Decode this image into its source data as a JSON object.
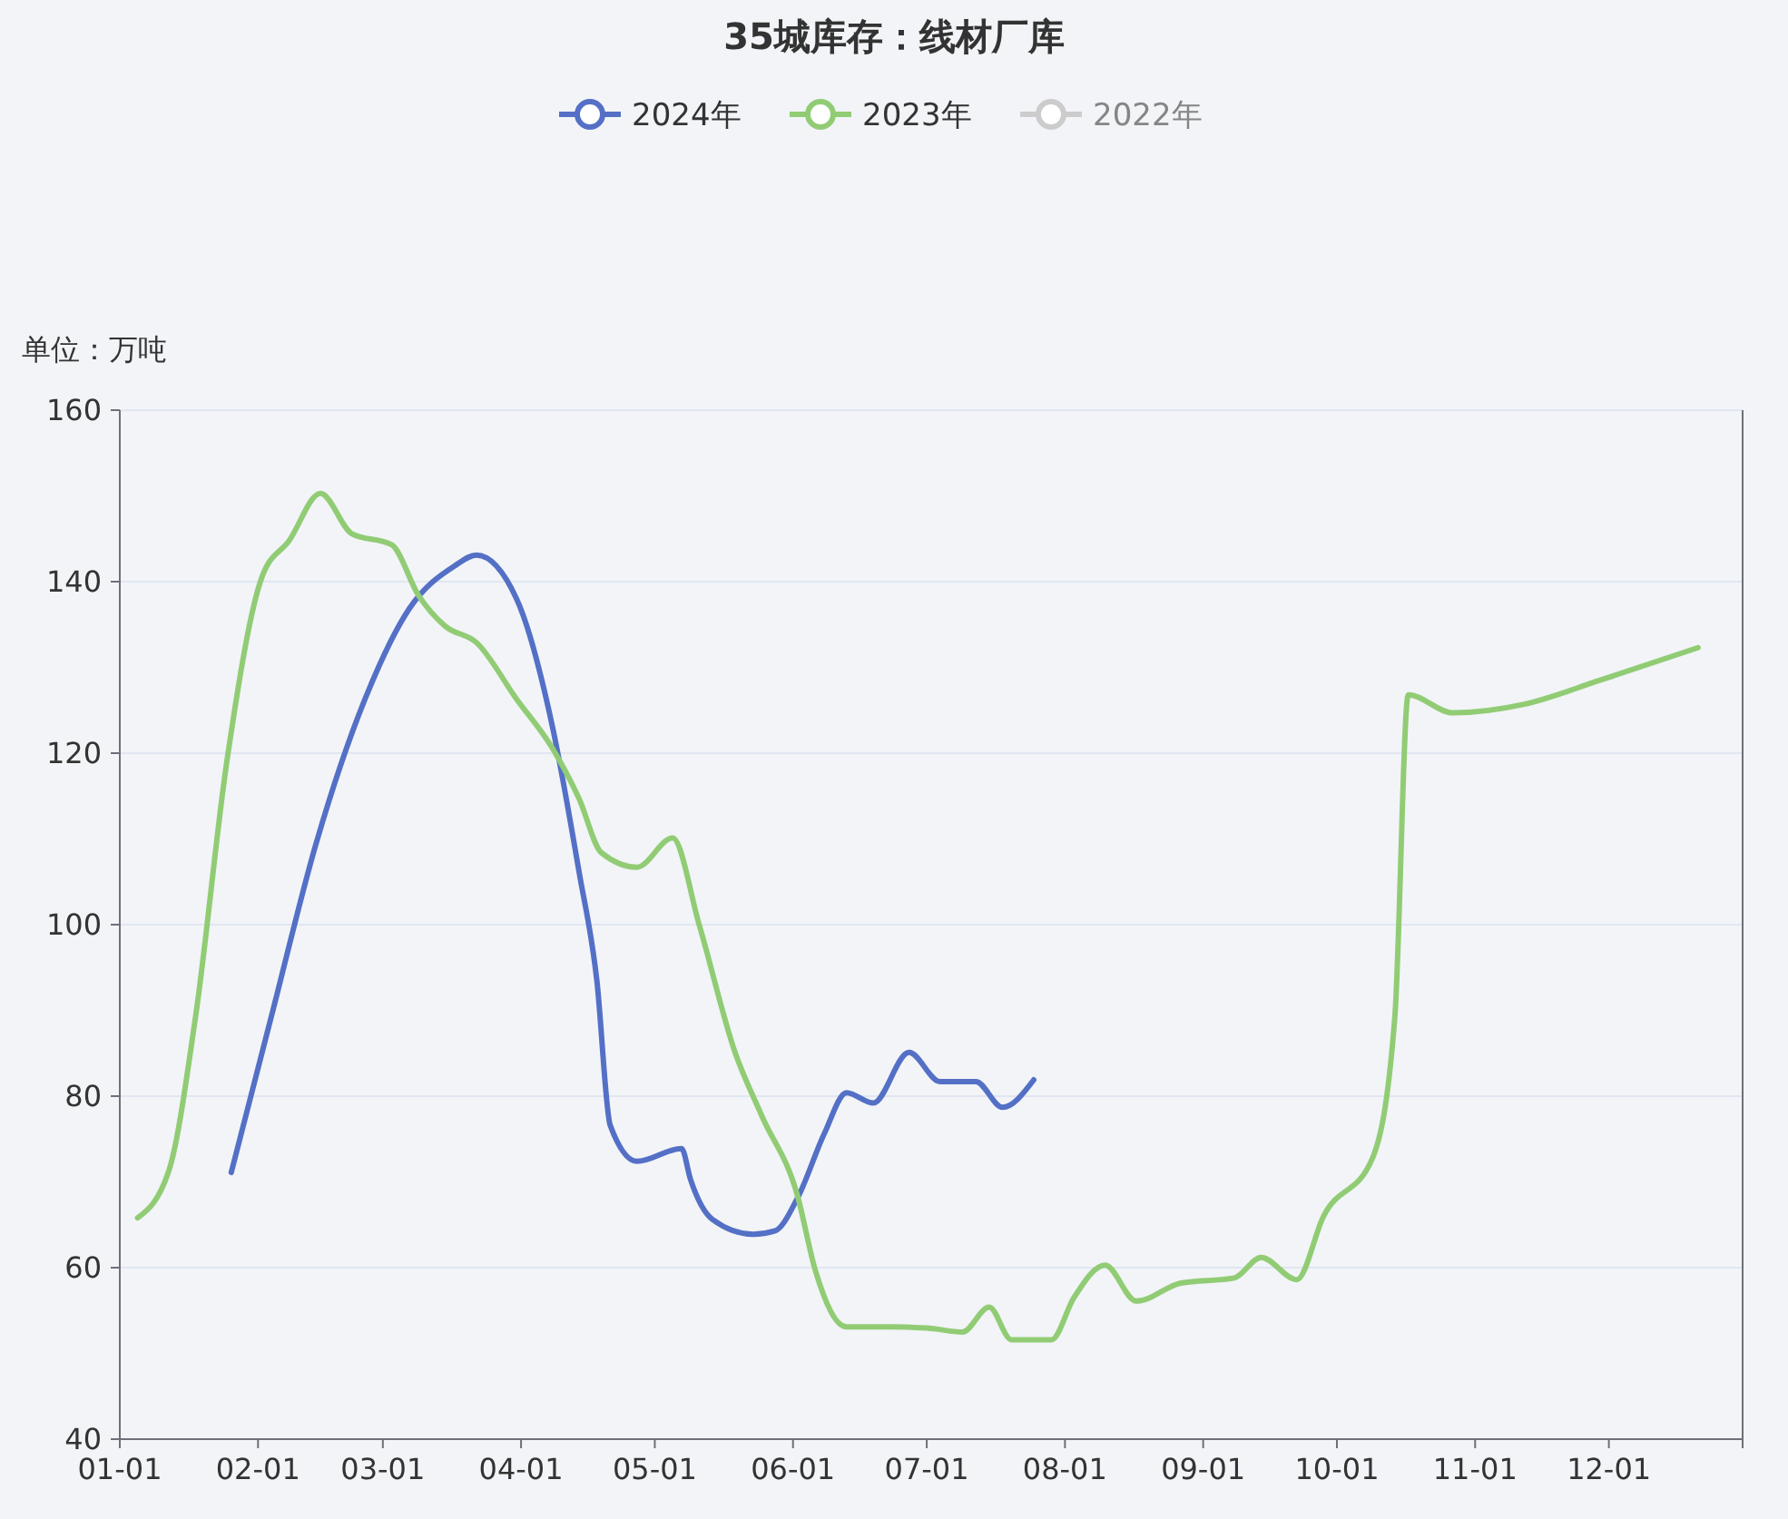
{
  "chart_data": {
    "type": "line",
    "title": "35城库存：线材厂库",
    "ylabel": "单位：万吨",
    "legend": "top",
    "grid": "y",
    "xlim": [
      "--01-01",
      "--12-31"
    ],
    "xticks": [
      {
        "value": "--01-01",
        "label": "01-01"
      },
      {
        "value": "--02-01",
        "label": "02-01"
      },
      {
        "value": "--03-01",
        "label": "03-01"
      },
      {
        "value": "--04-01",
        "label": "04-01"
      },
      {
        "value": "--05-01",
        "label": "05-01"
      },
      {
        "value": "--06-01",
        "label": "06-01"
      },
      {
        "value": "--07-01",
        "label": "07-01"
      },
      {
        "value": "--08-01",
        "label": "08-01"
      },
      {
        "value": "--09-01",
        "label": "09-01"
      },
      {
        "value": "--10-01",
        "label": "10-01"
      },
      {
        "value": "--11-01",
        "label": "11-01"
      },
      {
        "value": "--12-01",
        "label": "12-01"
      }
    ],
    "ylim": [
      40,
      160
    ],
    "yticks": [
      40,
      60,
      80,
      100,
      120,
      140,
      160
    ],
    "series": [
      {
        "name": "2024年",
        "color": "#5470c6",
        "x": [
          "--01-26",
          "--02-04",
          "--02-14",
          "--02-25",
          "--03-07",
          "--03-17",
          "--03-22",
          "--03-31",
          "--04-08",
          "--04-14",
          "--04-18",
          "--04-21",
          "--04-27",
          "--05-07",
          "--05-09",
          "--05-14",
          "--05-23",
          "--05-28",
          "--06-02",
          "--06-08",
          "--06-13",
          "--06-19",
          "--06-27",
          "--07-04",
          "--07-12",
          "--07-18",
          "--07-25"
        ],
        "values": [
          71.1,
          89.3,
          109.4,
          126.3,
          136.9,
          141.8,
          143.1,
          138,
          123.2,
          106.2,
          93.5,
          76.6,
          72.4,
          73.9,
          70.3,
          65.6,
          63.9,
          64.3,
          68.1,
          75.6,
          80.4,
          79.2,
          85.1,
          81.7,
          81.7,
          78.7,
          81.9
        ]
      },
      {
        "name": "2023年",
        "color": "#91cc75",
        "x": [
          "--01-05",
          "--01-12",
          "--01-18",
          "--01-25",
          "--02-02",
          "--02-08",
          "--02-15",
          "--02-22",
          "--03-03",
          "--03-09",
          "--03-15",
          "--03-22",
          "--03-31",
          "--04-08",
          "--04-14",
          "--04-19",
          "--04-27",
          "--05-05",
          "--05-11",
          "--05-19",
          "--05-25",
          "--06-02",
          "--06-06",
          "--06-13",
          "--06-23",
          "--07-02",
          "--07-09",
          "--07-15",
          "--07-20",
          "--07-29",
          "--08-03",
          "--08-10",
          "--08-17",
          "--08-27",
          "--09-08",
          "--09-14",
          "--09-22",
          "--09-28",
          "--10-09",
          "--10-14",
          "--10-17",
          "--10-27",
          "--11-12",
          "--11-29",
          "--12-21"
        ],
        "values": [
          65.8,
          71.3,
          89.3,
          119,
          140.7,
          144.8,
          150.3,
          145.6,
          144.3,
          138.4,
          134.8,
          132.9,
          126.3,
          120.6,
          114.7,
          108.4,
          106.7,
          110.1,
          99.9,
          85.1,
          77.7,
          68.4,
          59.7,
          53.1,
          53.1,
          52.9,
          52.5,
          55.4,
          51.6,
          51.6,
          56.5,
          60.3,
          56.1,
          58.2,
          58.8,
          61.2,
          58.6,
          66,
          72.8,
          89.3,
          126.8,
          124.7,
          125.7,
          128.5,
          132.3
        ]
      },
      {
        "name": "2022年",
        "color": "#cccccc"
      }
    ]
  }
}
